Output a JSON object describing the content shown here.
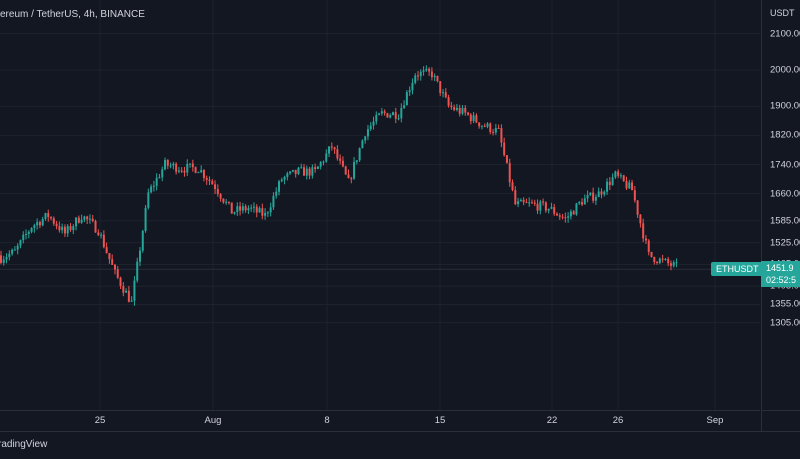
{
  "legend": {
    "text": "ereum / TetherUS, 4h, BINANCE"
  },
  "price_axis": {
    "currency": "USDT",
    "ticks": [
      "2100.00",
      "2000.00",
      "1900.00",
      "1820.00",
      "1740.00",
      "1660.00",
      "1585.00",
      "1525.00",
      "1465.00",
      "1405.00",
      "1355.00",
      "1305.00"
    ]
  },
  "time_axis": {
    "ticks": [
      "25",
      "Aug",
      "8",
      "15",
      "22",
      "26",
      "Sep"
    ]
  },
  "last_price": {
    "symbol": "ETHUSDT",
    "price": "1451.9",
    "countdown": "02:52:5"
  },
  "footer": {
    "brand": "radingView"
  },
  "colors": {
    "background": "#131722",
    "up": "#26a69a",
    "down": "#ef5350",
    "grid": "#1e222d",
    "badge": "#26a69a"
  },
  "chart_data": {
    "type": "candlestick",
    "symbol": "ETHUSDT",
    "interval": "4h",
    "exchange": "BINANCE",
    "y_range": [
      1250,
      2140
    ],
    "close_series": [
      [
        "Jul 20",
        1500
      ],
      [
        "Jul 21",
        1570
      ],
      [
        "Jul 22",
        1600
      ],
      [
        "Jul 23",
        1550
      ],
      [
        "Jul 24",
        1600
      ],
      [
        "Jul 25",
        1560
      ],
      [
        "Jul 26",
        1440
      ],
      [
        "Jul 27",
        1360
      ],
      [
        "Jul 28",
        1660
      ],
      [
        "Jul 29",
        1740
      ],
      [
        "Jul 30",
        1730
      ],
      [
        "Jul 31",
        1730
      ],
      [
        "Aug 1",
        1680
      ],
      [
        "Aug 2",
        1610
      ],
      [
        "Aug 3",
        1620
      ],
      [
        "Aug 4",
        1600
      ],
      [
        "Aug 5",
        1700
      ],
      [
        "Aug 6",
        1720
      ],
      [
        "Aug 7",
        1720
      ],
      [
        "Aug 8",
        1790
      ],
      [
        "Aug 9",
        1690
      ],
      [
        "Aug 10",
        1830
      ],
      [
        "Aug 11",
        1880
      ],
      [
        "Aug 12",
        1880
      ],
      [
        "Aug 13",
        1990
      ],
      [
        "Aug 14",
        1990
      ],
      [
        "Aug 15",
        1900
      ],
      [
        "Aug 16",
        1880
      ],
      [
        "Aug 17",
        1850
      ],
      [
        "Aug 18",
        1830
      ],
      [
        "Aug 19",
        1630
      ],
      [
        "Aug 20",
        1630
      ],
      [
        "Aug 21",
        1620
      ],
      [
        "Aug 22",
        1590
      ],
      [
        "Aug 23",
        1640
      ],
      [
        "Aug 24",
        1660
      ],
      [
        "Aug 25",
        1710
      ],
      [
        "Aug 26",
        1670
      ],
      [
        "Aug 27",
        1490
      ],
      [
        "Aug 28",
        1470
      ],
      [
        "Aug 29",
        1452
      ]
    ]
  }
}
